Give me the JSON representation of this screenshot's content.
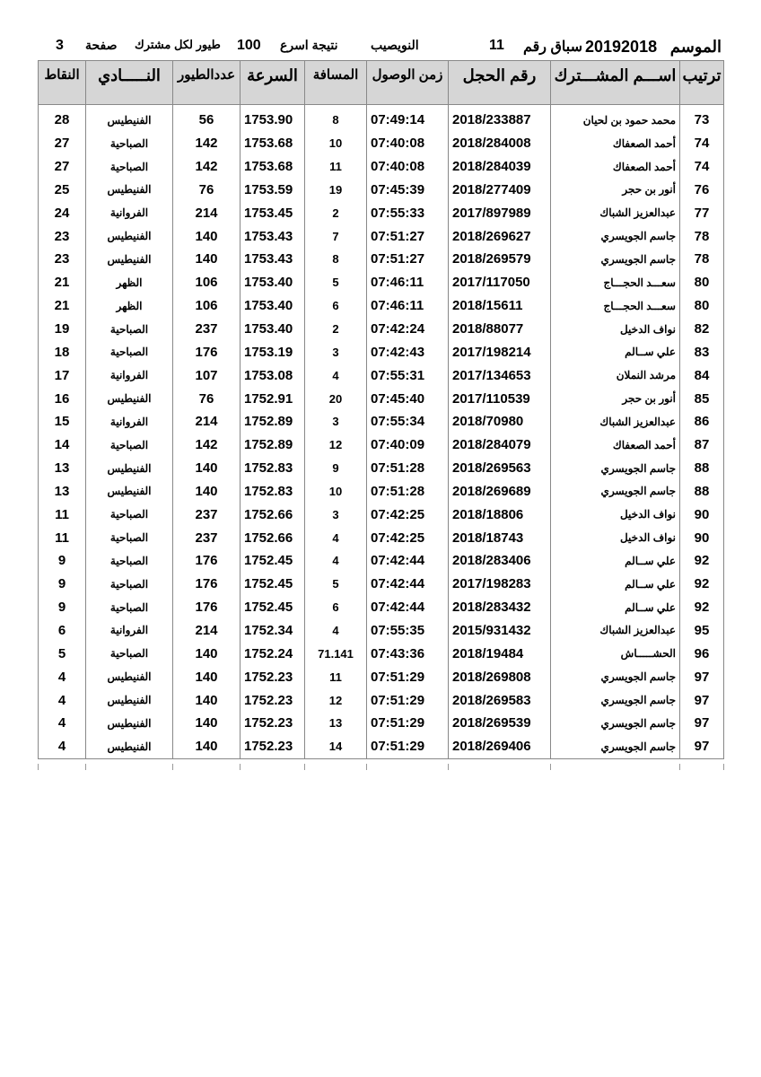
{
  "header": {
    "season_label": "الموسم",
    "season": "20192018",
    "race_label": "سباق رقم",
    "race_no": "11",
    "location": "النويصيب",
    "result_label": "نتيجة اسرع",
    "count": "100",
    "per_label": "طيور لكل مشترك",
    "page_label": "صفحة",
    "page_no": "3"
  },
  "columns": [
    "ترتيب",
    "اســـم المشـــترك",
    "رقم الحجل",
    "زمن الوصول",
    "المسافة",
    "السرعة",
    "عددالطيور",
    "النـــــادي",
    "النقاط"
  ],
  "rows": [
    [
      "73",
      "محمد حمود بن لحيان",
      "2018/233887",
      "07:49:14",
      "8",
      "1753.90",
      "56",
      "الفنيطيس",
      "28"
    ],
    [
      "74",
      "أحمد الصعفاك",
      "2018/284008",
      "07:40:08",
      "10",
      "1753.68",
      "142",
      "الصباحية",
      "27"
    ],
    [
      "74",
      "أحمد الصعفاك",
      "2018/284039",
      "07:40:08",
      "11",
      "1753.68",
      "142",
      "الصباحية",
      "27"
    ],
    [
      "76",
      "أنور بن حجر",
      "2018/277409",
      "07:45:39",
      "19",
      "1753.59",
      "76",
      "الفنيطيس",
      "25"
    ],
    [
      "77",
      "عبدالعزيز الشباك",
      "2017/897989",
      "07:55:33",
      "2",
      "1753.45",
      "214",
      "الفروانية",
      "24"
    ],
    [
      "78",
      "جاسم الجويسري",
      "2018/269627",
      "07:51:27",
      "7",
      "1753.43",
      "140",
      "الفنيطيس",
      "23"
    ],
    [
      "78",
      "جاسم الجويسري",
      "2018/269579",
      "07:51:27",
      "8",
      "1753.43",
      "140",
      "الفنيطيس",
      "23"
    ],
    [
      "80",
      "سعـــد الحجـــاج",
      "2017/117050",
      "07:46:11",
      "5",
      "1753.40",
      "106",
      "الظهر",
      "21"
    ],
    [
      "80",
      "سعـــد الحجـــاج",
      "2018/15611",
      "07:46:11",
      "6",
      "1753.40",
      "106",
      "الظهر",
      "21"
    ],
    [
      "82",
      "نواف الدخيل",
      "2018/88077",
      "07:42:24",
      "2",
      "1753.40",
      "237",
      "الصباحية",
      "19"
    ],
    [
      "83",
      "علي ســالم",
      "2017/198214",
      "07:42:43",
      "3",
      "1753.19",
      "176",
      "الصباحية",
      "18"
    ],
    [
      "84",
      "مرشد النملان",
      "2017/134653",
      "07:55:31",
      "4",
      "1753.08",
      "107",
      "الفروانية",
      "17"
    ],
    [
      "85",
      "أنور بن حجر",
      "2017/110539",
      "07:45:40",
      "20",
      "1752.91",
      "76",
      "الفنيطيس",
      "16"
    ],
    [
      "86",
      "عبدالعزيز الشباك",
      "2018/70980",
      "07:55:34",
      "3",
      "1752.89",
      "214",
      "الفروانية",
      "15"
    ],
    [
      "87",
      "أحمد الصعفاك",
      "2018/284079",
      "07:40:09",
      "12",
      "1752.89",
      "142",
      "الصباحية",
      "14"
    ],
    [
      "88",
      "جاسم الجويسري",
      "2018/269563",
      "07:51:28",
      "9",
      "1752.83",
      "140",
      "الفنيطيس",
      "13"
    ],
    [
      "88",
      "جاسم الجويسري",
      "2018/269689",
      "07:51:28",
      "10",
      "1752.83",
      "140",
      "الفنيطيس",
      "13"
    ],
    [
      "90",
      "نواف الدخيل",
      "2018/18806",
      "07:42:25",
      "3",
      "1752.66",
      "237",
      "الصباحية",
      "11"
    ],
    [
      "90",
      "نواف الدخيل",
      "2018/18743",
      "07:42:25",
      "4",
      "1752.66",
      "237",
      "الصباحية",
      "11"
    ],
    [
      "92",
      "علي ســالم",
      "2018/283406",
      "07:42:44",
      "4",
      "1752.45",
      "176",
      "الصباحية",
      "9"
    ],
    [
      "92",
      "علي ســالم",
      "2017/198283",
      "07:42:44",
      "5",
      "1752.45",
      "176",
      "الصباحية",
      "9"
    ],
    [
      "92",
      "علي ســالم",
      "2018/283432",
      "07:42:44",
      "6",
      "1752.45",
      "176",
      "الصباحية",
      "9"
    ],
    [
      "95",
      "عبدالعزيز الشباك",
      "2015/931432",
      "07:55:35",
      "4",
      "1752.34",
      "214",
      "الفروانية",
      "6"
    ],
    [
      "96",
      "الحشـــــاش",
      "2018/19484",
      "07:43:36",
      "71.141",
      "1752.24",
      "140",
      "الصباحية",
      "5"
    ],
    [
      "97",
      "جاسم الجويسري",
      "2018/269808",
      "07:51:29",
      "11",
      "1752.23",
      "140",
      "الفنيطيس",
      "4"
    ],
    [
      "97",
      "جاسم الجويسري",
      "2018/269583",
      "07:51:29",
      "12",
      "1752.23",
      "140",
      "الفنيطيس",
      "4"
    ],
    [
      "97",
      "جاسم الجويسري",
      "2018/269539",
      "07:51:29",
      "13",
      "1752.23",
      "140",
      "الفنيطيس",
      "4"
    ],
    [
      "97",
      "جاسم الجويسري",
      "2018/269406",
      "07:51:29",
      "14",
      "1752.23",
      "140",
      "الفنيطيس",
      "4"
    ]
  ]
}
